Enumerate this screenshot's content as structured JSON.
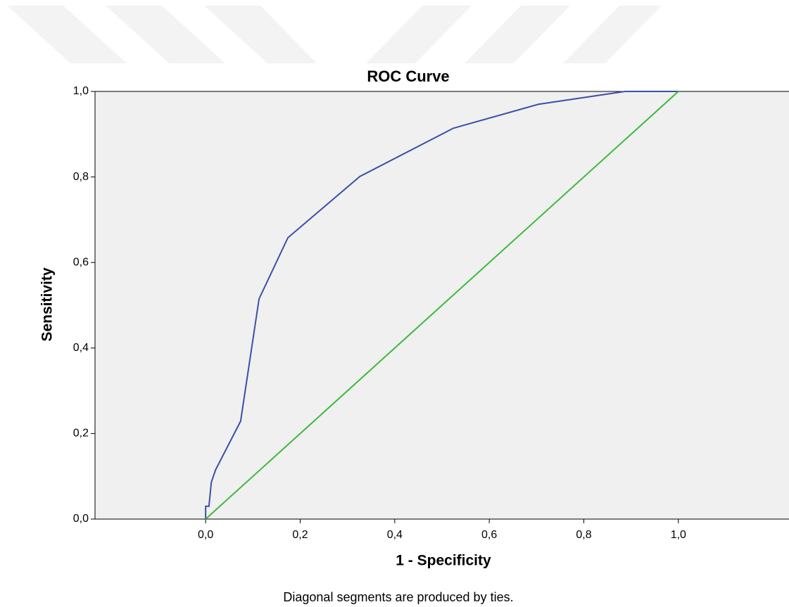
{
  "chart_data": {
    "type": "line",
    "title": "ROC Curve",
    "x_label": "1 - Specificity",
    "y_label": "Sensitivity",
    "footnote": "Diagonal segments are produced by ties.",
    "xlim": [
      -0.234,
      1.234
    ],
    "ylim": [
      0,
      1
    ],
    "xticks": [
      {
        "value": 0,
        "label": "0,0"
      },
      {
        "value": 0.2,
        "label": "0,2"
      },
      {
        "value": 0.4,
        "label": "0,4"
      },
      {
        "value": 0.6,
        "label": "0,6"
      },
      {
        "value": 0.8,
        "label": "0,8"
      },
      {
        "value": 1,
        "label": "1,0"
      }
    ],
    "yticks": [
      {
        "value": 0,
        "label": "0,0"
      },
      {
        "value": 0.2,
        "label": "0,2"
      },
      {
        "value": 0.4,
        "label": "0,4"
      },
      {
        "value": 0.6,
        "label": "0,6"
      },
      {
        "value": 0.8,
        "label": "0,8"
      },
      {
        "value": 1,
        "label": "1,0"
      }
    ],
    "series": [
      {
        "color": "#3c4fa8",
        "x": [
          0,
          0,
          0.007,
          0.012,
          0.021,
          0.074,
          0.113,
          0.174,
          0.326,
          0.524,
          0.704,
          0.887,
          1
        ],
        "values": [
          0,
          0.03,
          0.03,
          0.086,
          0.115,
          0.229,
          0.515,
          0.658,
          0.801,
          0.914,
          0.97,
          1,
          1
        ]
      },
      {
        "color": "#3cba3c",
        "x": [
          0,
          1
        ],
        "values": [
          0,
          1
        ]
      }
    ]
  }
}
